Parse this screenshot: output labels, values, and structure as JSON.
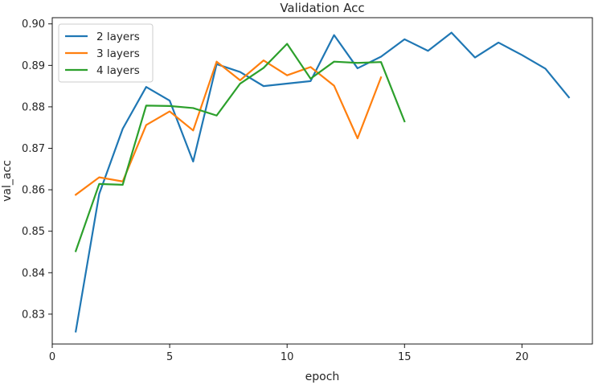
{
  "chart_data": {
    "type": "line",
    "title": "Validation Acc",
    "xlabel": "epoch",
    "ylabel": "val_acc",
    "xlim": [
      0.0,
      23.0
    ],
    "ylim": [
      0.8228,
      0.9015
    ],
    "xticks": [
      0,
      5,
      10,
      15,
      20
    ],
    "yticks": [
      0.83,
      0.84,
      0.85,
      0.86,
      0.87,
      0.88,
      0.89,
      0.9
    ],
    "ytick_labels": [
      "0.83",
      "0.84",
      "0.85",
      "0.86",
      "0.87",
      "0.88",
      "0.89",
      "0.90"
    ],
    "legend_position": "top-left",
    "grid": false,
    "series": [
      {
        "name": "2 layers",
        "color": "#1f77b4",
        "x": [
          1,
          2,
          3,
          4,
          5,
          6,
          7,
          8,
          9,
          10,
          11,
          12,
          13,
          14,
          15,
          16,
          17,
          18,
          19,
          20,
          21,
          22
        ],
        "y": [
          0.8258,
          0.859,
          0.8747,
          0.8848,
          0.8815,
          0.8668,
          0.8903,
          0.8884,
          0.885,
          0.8856,
          0.8862,
          0.8973,
          0.8893,
          0.8921,
          0.8963,
          0.8935,
          0.8979,
          0.8919,
          0.8955,
          0.8925,
          0.8892,
          0.8823
        ]
      },
      {
        "name": "3 layers",
        "color": "#ff7f0e",
        "x": [
          1,
          2,
          3,
          4,
          5,
          6,
          7,
          8,
          9,
          10,
          11,
          12,
          13,
          14
        ],
        "y": [
          0.8588,
          0.863,
          0.862,
          0.8756,
          0.8789,
          0.8743,
          0.8909,
          0.8864,
          0.8912,
          0.8876,
          0.8896,
          0.8851,
          0.8724,
          0.8871
        ]
      },
      {
        "name": "4 layers",
        "color": "#2ca02c",
        "x": [
          1,
          2,
          3,
          4,
          5,
          6,
          7,
          8,
          9,
          10,
          11,
          12,
          13,
          14,
          15
        ],
        "y": [
          0.8452,
          0.8614,
          0.8612,
          0.8803,
          0.8802,
          0.8797,
          0.8779,
          0.8856,
          0.8894,
          0.8952,
          0.8868,
          0.8909,
          0.8906,
          0.8908,
          0.8765
        ]
      }
    ]
  }
}
